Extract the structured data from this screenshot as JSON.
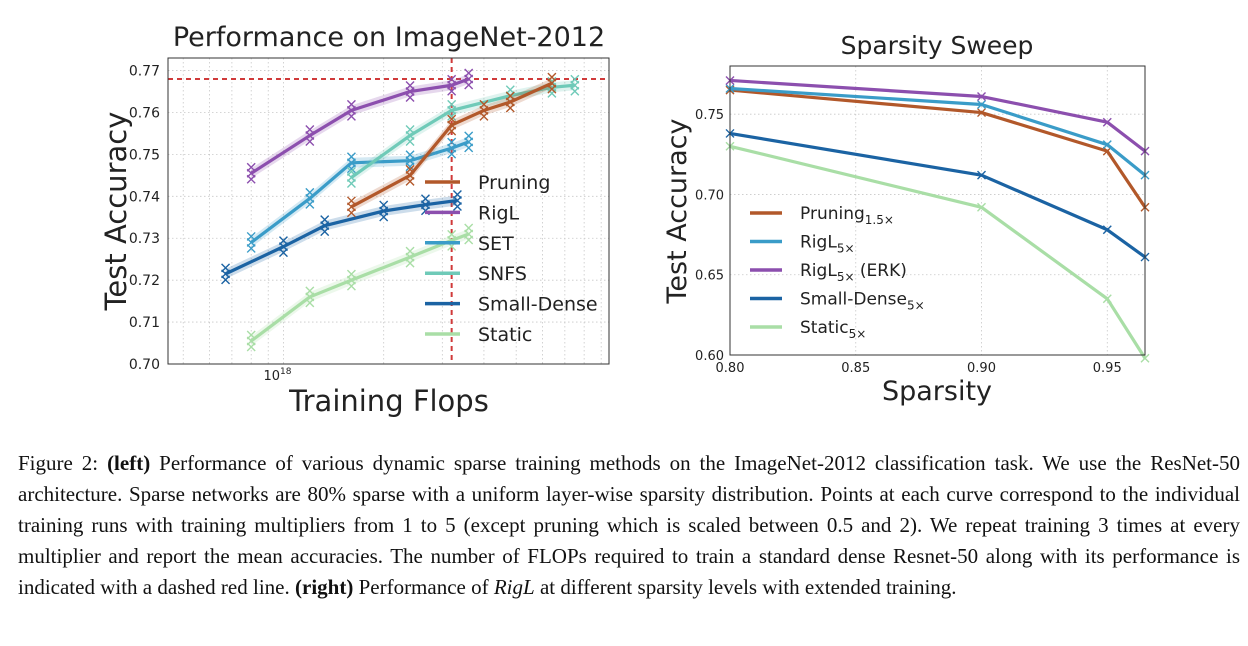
{
  "caption": {
    "figure_label": "Figure 2:",
    "left_tag": "(left)",
    "left_text": "Performance of various dynamic sparse training methods on the ImageNet-2012 classification task. We use the ResNet-50 architecture. Sparse networks are 80% sparse with a uniform layer-wise sparsity distribution. Points at each curve correspond to the individual training runs with training multipliers from 1 to 5 (except pruning which is scaled between 0.5 and 2). We repeat training 3 times at every multiplier and report the mean accuracies. The number of FLOPs required to train a standard dense Resnet-50 along with its performance is indicated with a dashed red line.",
    "right_tag": "(right)",
    "right_text_pre": "Performance of",
    "right_text_em": "RigL",
    "right_text_post": "at different sparsity levels with extended training."
  },
  "colors": {
    "pruning": "#b2582a",
    "rigl": "#8c4fae",
    "set": "#3a9cc8",
    "snfs": "#6fcab8",
    "small_dense": "#1b63a3",
    "static": "#a9dea6",
    "dense_ref": "#d03a3a"
  },
  "chart_data": [
    {
      "type": "line",
      "title": "Performance on ImageNet-2012",
      "xlabel": "Training Flops",
      "ylabel": "Test Accuracy",
      "x_scale": "log",
      "x_tick_labels": [
        "10^18"
      ],
      "ylim": [
        0.7,
        0.773
      ],
      "y_ticks": [
        "0.70",
        "0.71",
        "0.72",
        "0.73",
        "0.74",
        "0.75",
        "0.76",
        "0.77"
      ],
      "grid": true,
      "legend_position": "center-right",
      "reference_lines": {
        "dense_accuracy": 0.768,
        "dense_flops": 3.2e+18
      },
      "series": [
        {
          "key": "pruning",
          "name": "Pruning",
          "x": [
            1.6e+18,
            2.4e+18,
            3.2e+18,
            4e+18,
            4.8e+18,
            6.4e+18
          ],
          "y": [
            0.7375,
            0.745,
            0.757,
            0.7605,
            0.7625,
            0.767
          ]
        },
        {
          "key": "rigl",
          "name": "RigL",
          "x": [
            8e+17,
            1.2e+18,
            1.6e+18,
            2.4e+18,
            3.2e+18,
            3.6e+18
          ],
          "y": [
            0.7455,
            0.7545,
            0.7605,
            0.765,
            0.7665,
            0.768
          ]
        },
        {
          "key": "set",
          "name": "SET",
          "x": [
            8e+17,
            1.2e+18,
            1.6e+18,
            2.4e+18,
            3.2e+18,
            3.6e+18
          ],
          "y": [
            0.729,
            0.7395,
            0.748,
            0.7485,
            0.7515,
            0.753
          ]
        },
        {
          "key": "snfs",
          "name": "SNFS",
          "x": [
            1.6e+18,
            2.4e+18,
            3.2e+18,
            4.8e+18,
            6.4e+18,
            7.5e+18
          ],
          "y": [
            0.7445,
            0.7545,
            0.7605,
            0.764,
            0.766,
            0.7665
          ]
        },
        {
          "key": "small_dense",
          "name": "Small-Dense",
          "x": [
            6.7e+17,
            1e+18,
            1.33e+18,
            2e+18,
            2.67e+18,
            3.33e+18
          ],
          "y": [
            0.7215,
            0.728,
            0.733,
            0.7365,
            0.738,
            0.739
          ]
        },
        {
          "key": "static",
          "name": "Static",
          "x": [
            8e+17,
            1.2e+18,
            1.6e+18,
            2.4e+18,
            3.2e+18,
            3.6e+18
          ],
          "y": [
            0.7055,
            0.716,
            0.72,
            0.7255,
            0.7295,
            0.731
          ]
        }
      ]
    },
    {
      "type": "line",
      "title": "Sparsity Sweep",
      "xlabel": "Sparsity",
      "ylabel": "Test Accuracy",
      "xlim": [
        0.8,
        0.965
      ],
      "ylim": [
        0.6,
        0.78
      ],
      "x_ticks": [
        "0.80",
        "0.85",
        "0.90",
        "0.95"
      ],
      "y_ticks": [
        "0.60",
        "0.65",
        "0.70",
        "0.75"
      ],
      "grid": true,
      "legend_position": "lower-left",
      "series": [
        {
          "key": "pruning",
          "name": "Pruning",
          "name_sub": "1.5×",
          "x": [
            0.8,
            0.9,
            0.95,
            0.965
          ],
          "y": [
            0.765,
            0.751,
            0.727,
            0.692
          ]
        },
        {
          "key": "set",
          "name": "RigL",
          "name_sub": "5×",
          "x": [
            0.8,
            0.9,
            0.95,
            0.965
          ],
          "y": [
            0.766,
            0.756,
            0.731,
            0.712
          ]
        },
        {
          "key": "rigl",
          "name": "RigL",
          "name_sub": "5×",
          "name_post": " (ERK)",
          "x": [
            0.8,
            0.9,
            0.95,
            0.965
          ],
          "y": [
            0.771,
            0.761,
            0.745,
            0.727
          ]
        },
        {
          "key": "small_dense",
          "name": "Small-Dense",
          "name_sub": "5×",
          "x": [
            0.8,
            0.9,
            0.95,
            0.965
          ],
          "y": [
            0.738,
            0.712,
            0.678,
            0.661
          ]
        },
        {
          "key": "static",
          "name": "Static",
          "name_sub": "5×",
          "x": [
            0.8,
            0.9,
            0.95,
            0.965
          ],
          "y": [
            0.73,
            0.692,
            0.635,
            0.598
          ]
        }
      ]
    }
  ]
}
